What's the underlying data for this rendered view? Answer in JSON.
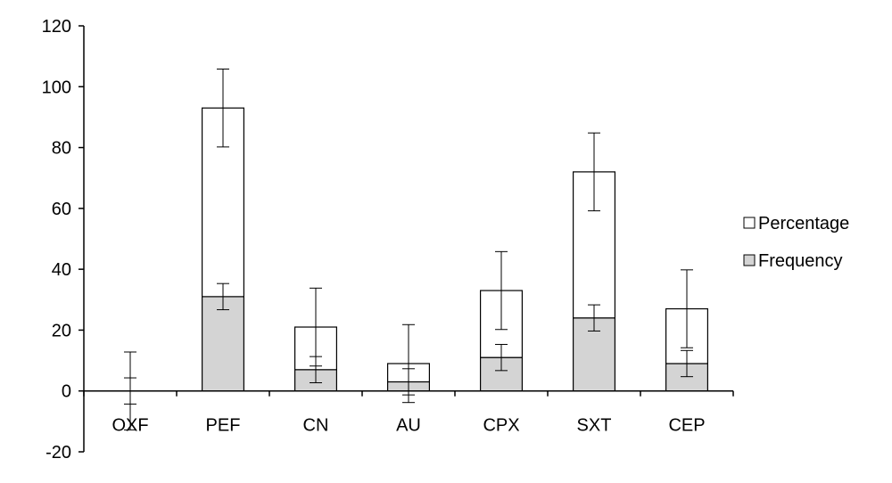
{
  "chart_data": {
    "type": "bar",
    "stacked": true,
    "title": "",
    "xlabel": "",
    "ylabel": "",
    "categories": [
      "OXF",
      "PEF",
      "CN",
      "AU",
      "CPX",
      "SXT",
      "CEP"
    ],
    "series": [
      {
        "name": "Frequency",
        "color": "#d4d4d4",
        "values": [
          0,
          31,
          7,
          3,
          11,
          24,
          9
        ],
        "error": [
          4.3,
          4.3,
          4.3,
          4.3,
          4.3,
          4.3,
          4.3
        ]
      },
      {
        "name": "Percentage",
        "color": "#ffffff",
        "values": [
          0,
          62,
          14,
          6,
          22,
          48,
          18
        ],
        "error": [
          12.8,
          12.8,
          12.8,
          12.8,
          12.8,
          12.8,
          12.8
        ]
      }
    ],
    "ylim": [
      -20,
      120
    ],
    "yticks": [
      "-20",
      "0",
      "20",
      "40",
      "60",
      "80",
      "100",
      "120"
    ],
    "grid": false,
    "legend_position": "right"
  }
}
